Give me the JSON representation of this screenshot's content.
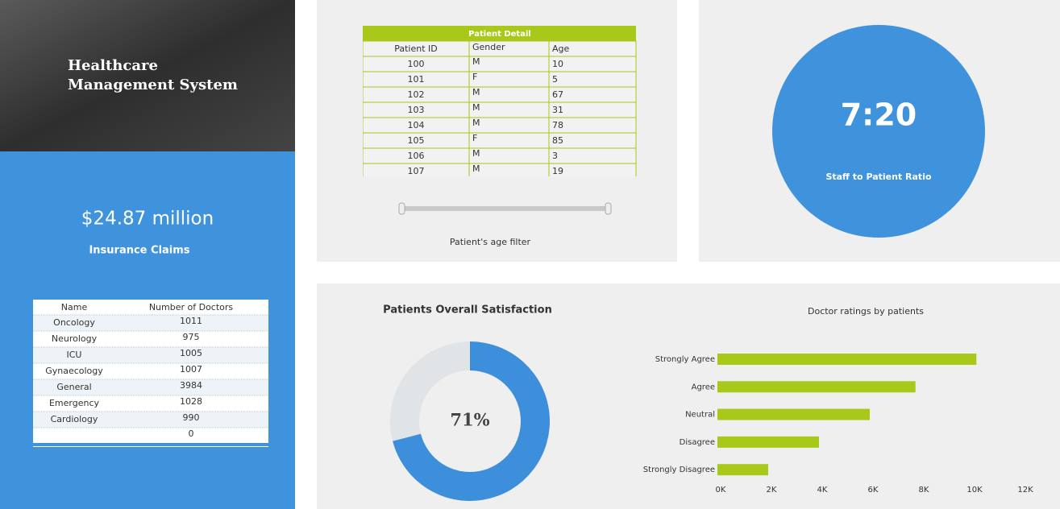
{
  "header": {
    "title_lines": [
      "Healthcare",
      "Management System"
    ]
  },
  "insurance": {
    "value": "$24.87 million",
    "label": "Insurance Claims"
  },
  "doctors_table": {
    "columns": [
      "Name",
      "Number of Doctors"
    ],
    "rows": [
      [
        "Oncology",
        1011
      ],
      [
        "Neurology",
        975
      ],
      [
        "ICU",
        1005
      ],
      [
        "Gynaecology",
        1007
      ],
      [
        "General",
        3984
      ],
      [
        "Emergency",
        1028
      ],
      [
        "Cardiology",
        990
      ],
      [
        null,
        0
      ]
    ]
  },
  "patient_table": {
    "title": "Patient Detail",
    "columns": [
      "Patient ID",
      "Gender",
      "Age"
    ],
    "rows": [
      [
        100,
        "M",
        10
      ],
      [
        101,
        "F",
        5
      ],
      [
        102,
        "M",
        67
      ],
      [
        103,
        "M",
        31
      ],
      [
        104,
        "M",
        78
      ],
      [
        105,
        "F",
        85
      ],
      [
        106,
        "M",
        3
      ],
      [
        107,
        "M",
        19
      ]
    ]
  },
  "age_filter": {
    "label": "Patient's age filter"
  },
  "ratio": {
    "value": "7:20",
    "label": "Staff to Patient Ratio"
  },
  "chart_data": [
    {
      "type": "donut",
      "title": "Patients Overall Satisfaction",
      "values": [
        71,
        29
      ],
      "value_labels": [
        "71%",
        null
      ],
      "colors": [
        "#3d8fdb",
        "#e1e4e7"
      ]
    },
    {
      "type": "bar",
      "orientation": "horizontal",
      "title": "Doctor ratings by patients",
      "categories": [
        "Strongly Agree",
        "Agree",
        "Neutral",
        "Disagree",
        "Strongly Disagree"
      ],
      "values": [
        10200,
        7800,
        6000,
        4000,
        2000
      ],
      "color": "#a8c81a",
      "xlim": [
        0,
        12000
      ],
      "xticks": [
        {
          "value": 0,
          "label": "0K"
        },
        {
          "value": 2000,
          "label": "2K"
        },
        {
          "value": 4000,
          "label": "4K"
        },
        {
          "value": 6000,
          "label": "6K"
        },
        {
          "value": 8000,
          "label": "8K"
        },
        {
          "value": 10000,
          "label": "10K"
        },
        {
          "value": 12000,
          "label": "12K"
        }
      ]
    }
  ]
}
